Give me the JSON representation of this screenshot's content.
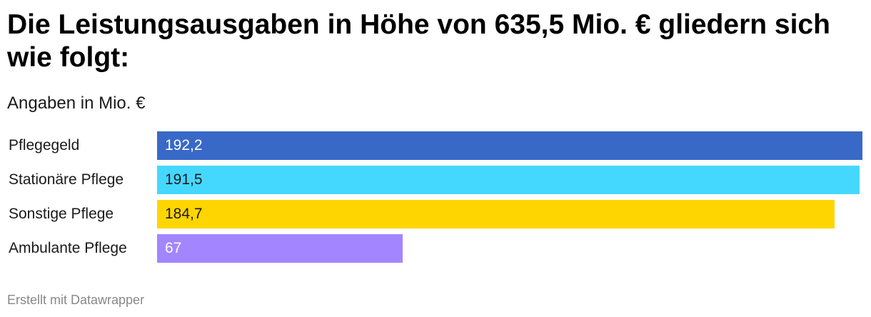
{
  "title": "Die Leistungsausgaben in Höhe von 635,5 Mio. € gliedern sich wie folgt:",
  "subtitle": "Angaben in Mio. €",
  "footer": "Erstellt mit Datawrapper",
  "chart_data": {
    "type": "bar",
    "orientation": "horizontal",
    "title": "Die Leistungsausgaben in Höhe von 635,5 Mio. € gliedern sich wie folgt:",
    "subtitle": "Angaben in Mio. €",
    "categories": [
      "Pflegegeld",
      "Stationäre Pflege",
      "Sonstige Pflege",
      "Ambulante Pflege"
    ],
    "values": [
      192.2,
      191.5,
      184.7,
      67
    ],
    "value_labels": [
      "192,2",
      "191,5",
      "184,7",
      "67"
    ],
    "colors": [
      "#3869c7",
      "#45d8ff",
      "#ffd500",
      "#a385ff"
    ],
    "label_colors": [
      "#ffffff",
      "#1a1a1a",
      "#1a1a1a",
      "#ffffff"
    ],
    "xlim": [
      0,
      192.2
    ],
    "grid": false,
    "legend": "none"
  }
}
